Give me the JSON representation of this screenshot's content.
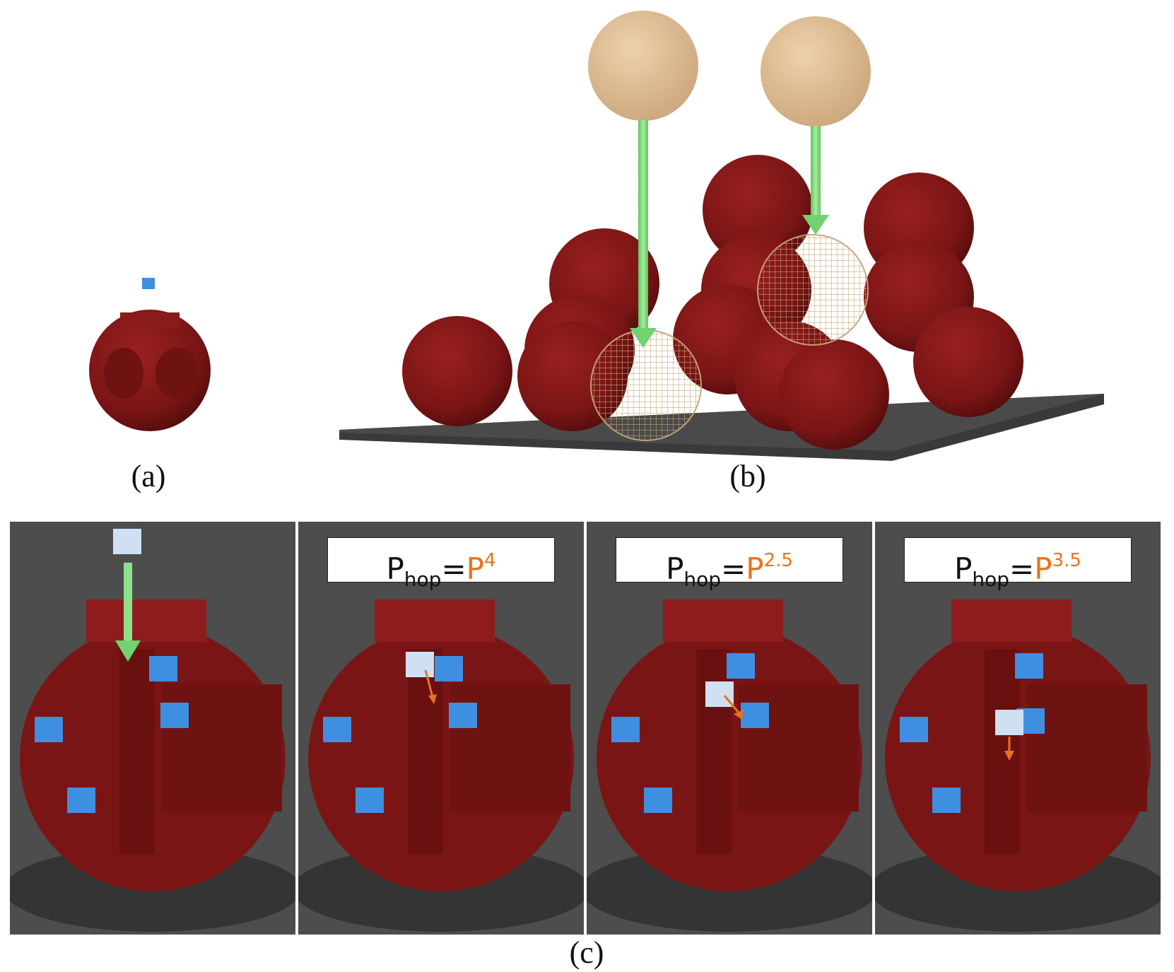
{
  "captions": {
    "a": "(a)",
    "b": "(b)",
    "c": "(c)"
  },
  "panels": [
    {
      "label": null
    },
    {
      "P": "P",
      "sub": "hop",
      "eq": "=",
      "rhs": "P",
      "exp": "4"
    },
    {
      "P": "P",
      "sub": "hop",
      "eq": "=",
      "rhs": "P",
      "exp": "2.5"
    },
    {
      "P": "P",
      "sub": "hop",
      "eq": "=",
      "rhs": "P",
      "exp": "3.5"
    }
  ],
  "colors": {
    "particle": "#7a1515",
    "particle_shade": "#5c0e0e",
    "probe_fill": "#d9b48a",
    "wireframe": "#c8a57a",
    "adsorbed": "#3f8fe0",
    "falling": "#cfe0f2",
    "arrow_green": "#7ad87a",
    "arrow_orange": "#e8731c",
    "floor": "#3a3a3a"
  }
}
